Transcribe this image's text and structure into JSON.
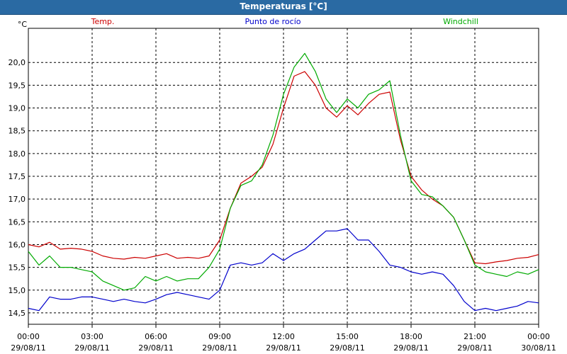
{
  "window": {
    "title": "Temperaturas [°C]"
  },
  "chart_data": {
    "type": "line",
    "title": "Temperaturas [°C]",
    "ylabel": "°C",
    "ylim": [
      14.25,
      20.75
    ],
    "yticks": [
      14.5,
      15.0,
      15.5,
      16.0,
      16.5,
      17.0,
      17.5,
      18.0,
      18.5,
      19.0,
      19.5,
      20.0
    ],
    "ytick_labels": [
      "14,5",
      "15,0",
      "15,5",
      "16,0",
      "16,5",
      "17,0",
      "17,5",
      "18,0",
      "18,5",
      "19,0",
      "19,5",
      "20,0"
    ],
    "xlim": [
      0,
      24
    ],
    "xticks": [
      {
        "x": 0,
        "time": "00:00",
        "date": "29/08/11"
      },
      {
        "x": 3,
        "time": "03:00",
        "date": "29/08/11"
      },
      {
        "x": 6,
        "time": "06:00",
        "date": "29/08/11"
      },
      {
        "x": 9,
        "time": "09:00",
        "date": "29/08/11"
      },
      {
        "x": 12,
        "time": "12:00",
        "date": "29/08/11"
      },
      {
        "x": 15,
        "time": "15:00",
        "date": "29/08/11"
      },
      {
        "x": 18,
        "time": "18:00",
        "date": "29/08/11"
      },
      {
        "x": 21,
        "time": "21:00",
        "date": "29/08/11"
      },
      {
        "x": 24,
        "time": "00:00",
        "date": "30/08/11"
      }
    ],
    "grid": true,
    "legend": "top",
    "series": [
      {
        "name": "Temp.",
        "color": "#cc0000",
        "x": [
          0,
          0.5,
          1,
          1.5,
          2,
          2.5,
          3,
          3.5,
          4,
          4.5,
          5,
          5.5,
          6,
          6.5,
          7,
          7.5,
          8,
          8.5,
          9,
          9.5,
          10,
          10.5,
          11,
          11.5,
          12,
          12.5,
          13,
          13.5,
          14,
          14.5,
          15,
          15.5,
          16,
          16.5,
          17,
          17.5,
          18,
          18.5,
          19,
          19.5,
          20,
          20.5,
          21,
          21.5,
          22,
          22.5,
          23,
          23.5,
          24
        ],
        "values": [
          16.0,
          15.95,
          16.05,
          15.9,
          15.92,
          15.9,
          15.85,
          15.75,
          15.7,
          15.68,
          15.72,
          15.7,
          15.75,
          15.8,
          15.7,
          15.72,
          15.7,
          15.75,
          16.1,
          16.8,
          17.35,
          17.5,
          17.7,
          18.2,
          19.0,
          19.7,
          19.8,
          19.5,
          19.0,
          18.8,
          19.05,
          18.85,
          19.1,
          19.3,
          19.35,
          18.3,
          17.5,
          17.2,
          17.0,
          16.85,
          16.6,
          16.1,
          15.6,
          15.58,
          15.62,
          15.65,
          15.7,
          15.72,
          15.78
        ]
      },
      {
        "name": "Punto de rocío",
        "color": "#0000cc",
        "x": [
          0,
          0.5,
          1,
          1.5,
          2,
          2.5,
          3,
          3.5,
          4,
          4.5,
          5,
          5.5,
          6,
          6.5,
          7,
          7.5,
          8,
          8.5,
          9,
          9.5,
          10,
          10.5,
          11,
          11.5,
          12,
          12.5,
          13,
          13.5,
          14,
          14.5,
          15,
          15.5,
          16,
          16.5,
          17,
          17.5,
          18,
          18.5,
          19,
          19.5,
          20,
          20.5,
          21,
          21.5,
          22,
          22.5,
          23,
          23.5,
          24
        ],
        "values": [
          14.6,
          14.55,
          14.85,
          14.8,
          14.8,
          14.85,
          14.85,
          14.8,
          14.75,
          14.8,
          14.75,
          14.72,
          14.8,
          14.9,
          14.95,
          14.9,
          14.85,
          14.8,
          15.0,
          15.55,
          15.6,
          15.55,
          15.6,
          15.8,
          15.65,
          15.8,
          15.9,
          16.1,
          16.3,
          16.3,
          16.35,
          16.1,
          16.1,
          15.85,
          15.55,
          15.5,
          15.4,
          15.35,
          15.4,
          15.35,
          15.1,
          14.75,
          14.55,
          14.6,
          14.55,
          14.6,
          14.65,
          14.75,
          14.72
        ]
      },
      {
        "name": "Windchill",
        "color": "#00aa00",
        "x": [
          0,
          0.5,
          1,
          1.5,
          2,
          2.5,
          3,
          3.5,
          4,
          4.5,
          5,
          5.5,
          6,
          6.5,
          7,
          7.5,
          8,
          8.5,
          9,
          9.5,
          10,
          10.5,
          11,
          11.5,
          12,
          12.5,
          13,
          13.5,
          14,
          14.5,
          15,
          15.5,
          16,
          16.5,
          17,
          17.5,
          18,
          18.5,
          19,
          19.5,
          20,
          20.5,
          21,
          21.5,
          22,
          22.5,
          23,
          23.5,
          24
        ],
        "values": [
          15.85,
          15.55,
          15.75,
          15.5,
          15.5,
          15.45,
          15.4,
          15.2,
          15.1,
          15.0,
          15.05,
          15.3,
          15.2,
          15.3,
          15.2,
          15.25,
          15.25,
          15.5,
          15.9,
          16.8,
          17.3,
          17.4,
          17.75,
          18.4,
          19.3,
          19.9,
          20.2,
          19.8,
          19.2,
          18.9,
          19.2,
          19.0,
          19.3,
          19.4,
          19.6,
          18.4,
          17.4,
          17.1,
          17.05,
          16.85,
          16.6,
          16.1,
          15.55,
          15.4,
          15.35,
          15.3,
          15.4,
          15.35,
          15.45
        ]
      }
    ]
  }
}
